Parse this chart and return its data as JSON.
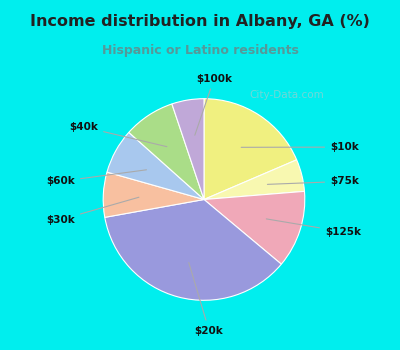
{
  "title": "Income distribution in Albany, GA (%)",
  "subtitle": "Hispanic or Latino residents",
  "labels": [
    "$10k",
    "$75k",
    "$125k",
    "$20k",
    "$30k",
    "$60k",
    "$40k",
    "$100k"
  ],
  "values": [
    18,
    5,
    12,
    35,
    7,
    7,
    8,
    5
  ],
  "colors": [
    "#f0f080",
    "#f8f8b0",
    "#f0a8b8",
    "#9999dd",
    "#f8c0a0",
    "#a8c8ee",
    "#aadd88",
    "#c0a8d8"
  ],
  "border_color": "#00eeee",
  "bg_chart": "#ddeedd",
  "title_color": "#222222",
  "subtitle_color": "#559999",
  "watermark": "City-Data.com",
  "label_positions": {
    "$10k": [
      0.72,
      0.62,
      "left"
    ],
    "$75k": [
      0.72,
      0.5,
      "left"
    ],
    "$125k": [
      0.7,
      0.3,
      "left"
    ],
    "$20k": [
      0.42,
      0.04,
      "center"
    ],
    "$30k": [
      0.08,
      0.38,
      "right"
    ],
    "$60k": [
      0.08,
      0.54,
      "right"
    ],
    "$40k": [
      0.22,
      0.7,
      "right"
    ],
    "$100k": [
      0.47,
      0.77,
      "center"
    ]
  }
}
